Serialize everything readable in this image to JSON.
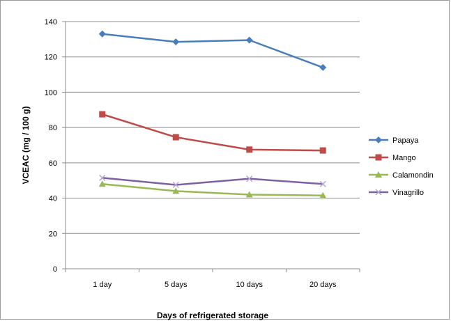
{
  "chart_data": {
    "type": "line",
    "xlabel": "Days of refrigerated storage",
    "ylabel": "VCEAC (mg / 100 g)",
    "categories": [
      "1 day",
      "5 days",
      "10 days",
      "20 days"
    ],
    "ylim": [
      0,
      140
    ],
    "yticks": [
      "0",
      "20",
      "40",
      "60",
      "80",
      "100",
      "120",
      "140"
    ],
    "grid": true,
    "legend_position": "right",
    "series": [
      {
        "name": "Papaya",
        "values": [
          133,
          128.5,
          129.5,
          114
        ],
        "color": "#4a7ebb",
        "marker": "diamond"
      },
      {
        "name": "Mango",
        "values": [
          87.5,
          74.5,
          67.5,
          67
        ],
        "color": "#be4b48",
        "marker": "square"
      },
      {
        "name": "Calamondin",
        "values": [
          48,
          44,
          42,
          41.5
        ],
        "color": "#98b954",
        "marker": "triangle"
      },
      {
        "name": "Vinagrillo",
        "values": [
          51.5,
          47.5,
          51,
          48
        ],
        "color": "#7d60a0",
        "marker": "x"
      }
    ]
  }
}
